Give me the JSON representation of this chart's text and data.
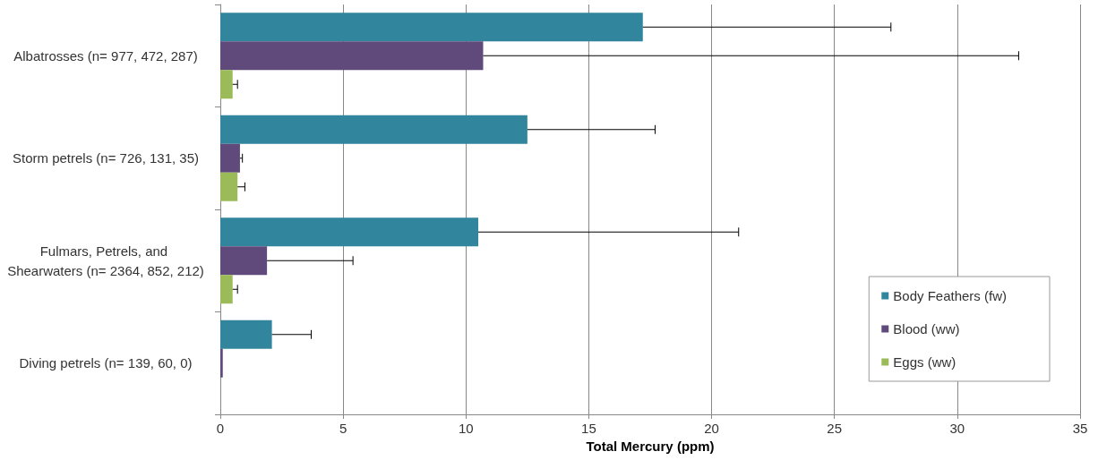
{
  "chart_data": {
    "type": "bar",
    "orientation": "horizontal",
    "xlabel": "Total Mercury (ppm)",
    "categories": [
      "Albatrosses (n= 977, 472, 287)",
      "Storm petrels (n= 726, 131, 35)",
      "Fulmars, Petrels, and Shearwaters (n= 2364, 852, 212)",
      "Diving petrels (n= 139, 60, 0)"
    ],
    "series": [
      {
        "name": "Body Feathers (fw)",
        "color": "#31859c",
        "values": [
          17.2,
          12.5,
          10.5,
          2.1
        ],
        "errors": [
          [
            17.2,
            27.3
          ],
          [
            12.5,
            17.7
          ],
          [
            10.5,
            21.1
          ],
          [
            2.1,
            3.7
          ]
        ]
      },
      {
        "name": "Blood (ww)",
        "color": "#604a7b",
        "values": [
          10.7,
          0.8,
          1.9,
          0.1
        ],
        "errors": [
          [
            10.7,
            32.5
          ],
          [
            0.8,
            0.9
          ],
          [
            1.9,
            5.4
          ],
          null
        ]
      },
      {
        "name": "Eggs (ww)",
        "color": "#9bbb59",
        "values": [
          0.5,
          0.7,
          0.5,
          null
        ],
        "errors": [
          [
            0.5,
            0.7
          ],
          [
            0.7,
            1.0
          ],
          [
            0.5,
            0.7
          ],
          null
        ]
      }
    ],
    "xlim": [
      0,
      35
    ],
    "xticks": [
      0,
      5,
      10,
      15,
      20,
      25,
      30,
      35
    ],
    "grid": "x",
    "legend": "bottom right"
  }
}
